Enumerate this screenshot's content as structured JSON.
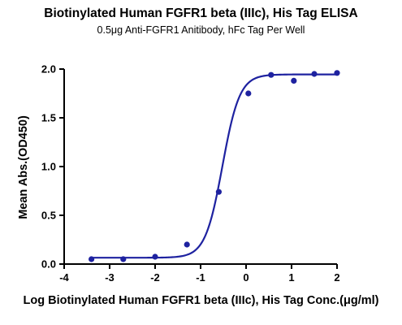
{
  "chart_data": {
    "type": "scatter",
    "title": "Biotinylated Human FGFR1 beta (IIIc), His Tag ELISA",
    "subtitle": "0.5μg Anti-FGFR1 Anitibody, hFc Tag Per Well",
    "xlabel": "Log Biotinylated Human FGFR1 beta (IIIc), His Tag Conc.(μg/ml)",
    "ylabel": "Mean Abs.(OD450)",
    "xlim": [
      -4,
      2
    ],
    "ylim": [
      0,
      2.0
    ],
    "x_ticks": [
      "-4",
      "-3",
      "-2",
      "-1",
      "0",
      "1",
      "2"
    ],
    "y_ticks": [
      "0.0",
      "0.5",
      "1.0",
      "1.5",
      "2.0"
    ],
    "grid": false,
    "colors": {
      "series": "#1e22a0"
    },
    "points": [
      {
        "x": -3.4,
        "y": 0.05
      },
      {
        "x": -2.7,
        "y": 0.05
      },
      {
        "x": -2.0,
        "y": 0.075
      },
      {
        "x": -1.3,
        "y": 0.2
      },
      {
        "x": -0.6,
        "y": 0.74
      },
      {
        "x": 0.05,
        "y": 1.75
      },
      {
        "x": 0.55,
        "y": 1.94
      },
      {
        "x": 1.05,
        "y": 1.88
      },
      {
        "x": 1.5,
        "y": 1.95
      },
      {
        "x": 2.0,
        "y": 1.96
      }
    ],
    "fit_curve": {
      "model": "4PL",
      "bottom": 0.065,
      "top": 1.945,
      "logEC50": -0.52,
      "hill": 2.3
    }
  }
}
